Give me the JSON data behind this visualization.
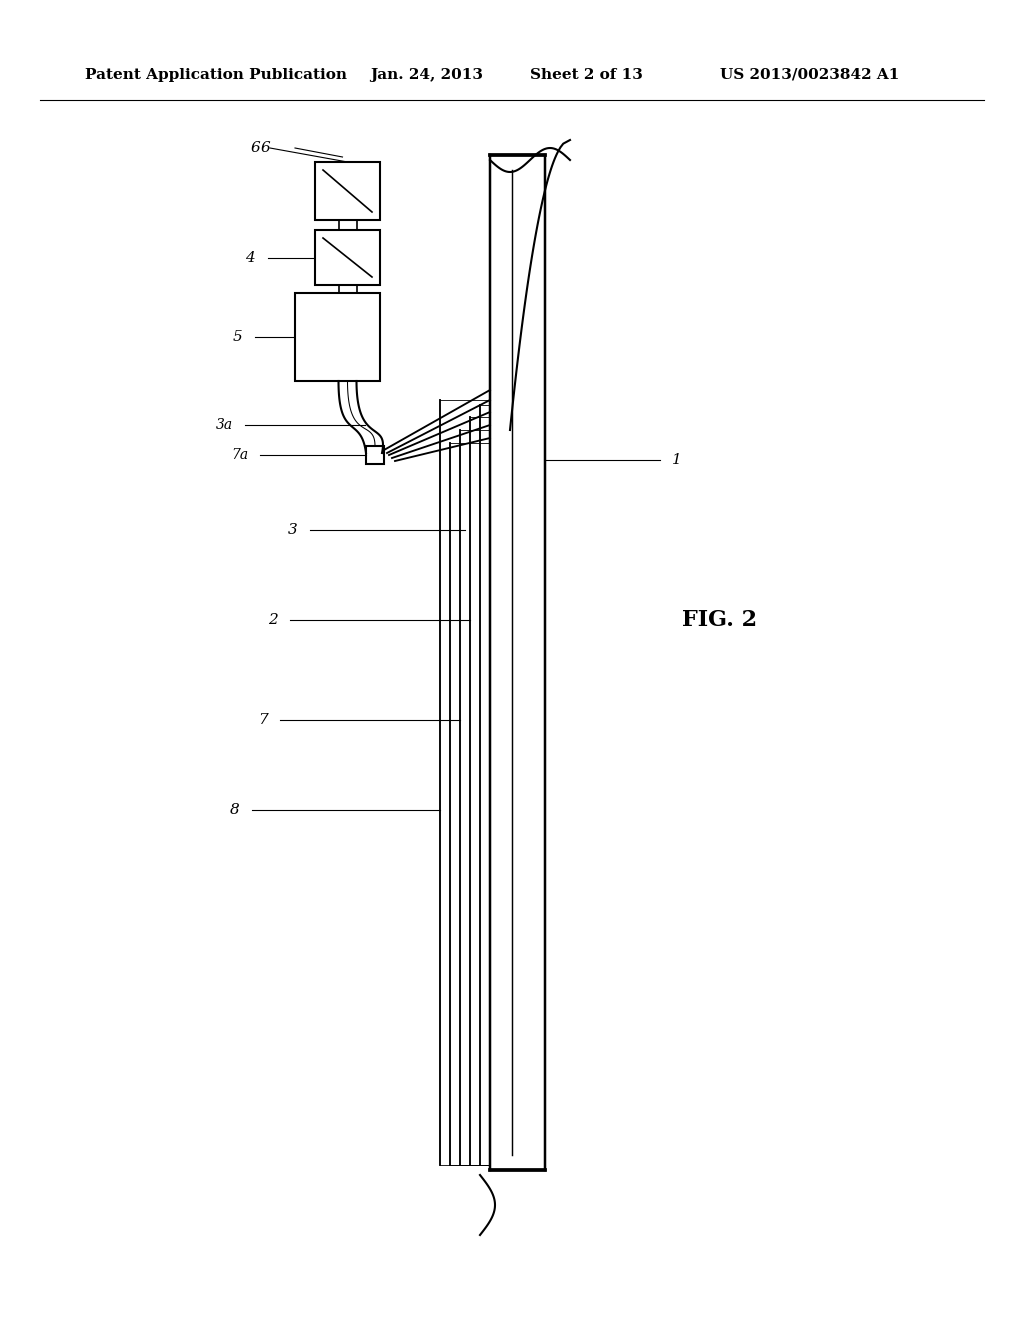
{
  "background_color": "#ffffff",
  "header_text": "Patent Application Publication",
  "header_date": "Jan. 24, 2013",
  "header_sheet": "Sheet 2 of 13",
  "header_patent": "US 2013/0023842 A1",
  "fig_label": "FIG. 2",
  "line_color": "#000000",
  "line_width": 1.5
}
